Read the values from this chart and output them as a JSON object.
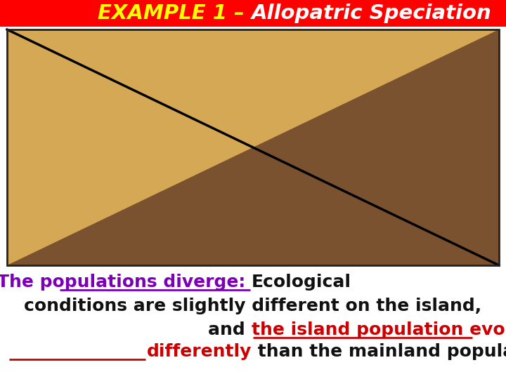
{
  "bg_color": "#ffffff",
  "title_bg": "#ff0000",
  "title_yellow": "EXAMPLE 1 – ",
  "title_white": "Allopatric Speciation",
  "title_fontsize": 21,
  "img_left_color": "#d4a855",
  "img_right_color": "#7a5230",
  "text_fontsize": 18,
  "text_color_black": "#111111",
  "text_color_purple": "#7b00b4",
  "text_color_red": "#cc0000",
  "line1_purple": "The populations diverge: ",
  "line1_black": "Ecological",
  "line2": "conditions are slightly different on the island,",
  "line3_pre": "and ",
  "line3_red": "the island population evolves",
  "line4_red": "differently",
  "line4_black": " than the mainland population does."
}
